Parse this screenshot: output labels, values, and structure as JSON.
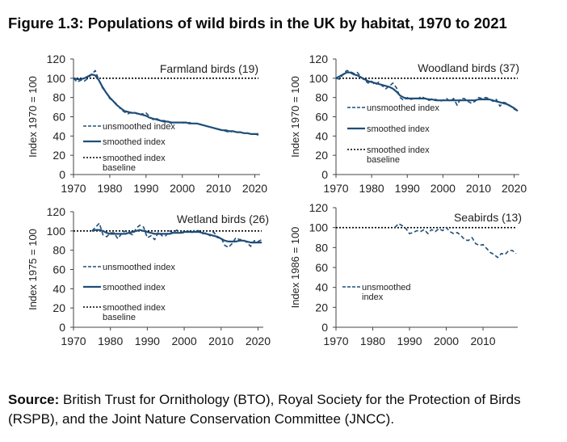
{
  "figure": {
    "title": "Figure 1.3: Populations of wild birds in the UK by habitat, 1970 to 2021",
    "source_label": "Source:",
    "source_text": "British Trust for Ornithology (BTO), Royal Society for the Protection of Birds (RSPB), and the Joint Nature Conservation Committee (JNCC)."
  },
  "colors": {
    "series": "#1f4e79",
    "baseline": "#000000",
    "axis": "#444444"
  },
  "chart_data": [
    {
      "type": "line",
      "title": "Farmland birds (19)",
      "xlabel": "",
      "ylabel": "Index 1970 = 100",
      "xlim": [
        1970,
        2021
      ],
      "ylim": [
        0,
        120
      ],
      "xticks": [
        1970,
        1980,
        1990,
        2000,
        2010,
        2020
      ],
      "yticks": [
        0,
        20,
        40,
        60,
        80,
        100,
        120
      ],
      "legend": [
        "unsmoothed index",
        "smoothed index",
        "smoothed index baseline"
      ],
      "legend_position": "bottom-left",
      "baseline": 100,
      "series": [
        {
          "name": "unsmoothed index",
          "style": "dashed",
          "x": [
            1970,
            1971,
            1972,
            1973,
            1974,
            1975,
            1976,
            1977,
            1978,
            1979,
            1980,
            1981,
            1982,
            1983,
            1984,
            1985,
            1986,
            1987,
            1988,
            1989,
            1990,
            1991,
            1992,
            1993,
            1994,
            1995,
            1996,
            1997,
            1998,
            1999,
            2000,
            2001,
            2002,
            2003,
            2004,
            2005,
            2006,
            2007,
            2008,
            2009,
            2010,
            2011,
            2012,
            2013,
            2014,
            2015,
            2016,
            2017,
            2018,
            2019,
            2020,
            2021
          ],
          "y": [
            100,
            96,
            98,
            97,
            100,
            104,
            108,
            98,
            90,
            85,
            79,
            76,
            73,
            68,
            65,
            63,
            65,
            64,
            62,
            63,
            64,
            60,
            57,
            58,
            56,
            56,
            55,
            53,
            54,
            54,
            54,
            53,
            54,
            53,
            53,
            52,
            51,
            50,
            49,
            48,
            47,
            46,
            45,
            44,
            45,
            44,
            44,
            43,
            43,
            42,
            42,
            41
          ]
        },
        {
          "name": "smoothed index",
          "style": "solid",
          "x": [
            1970,
            1971,
            1972,
            1973,
            1974,
            1975,
            1976,
            1977,
            1978,
            1979,
            1980,
            1981,
            1982,
            1983,
            1984,
            1985,
            1986,
            1987,
            1988,
            1989,
            1990,
            1991,
            1992,
            1993,
            1994,
            1995,
            1996,
            1997,
            1998,
            1999,
            2000,
            2001,
            2002,
            2003,
            2004,
            2005,
            2006,
            2007,
            2008,
            2009,
            2010,
            2011,
            2012,
            2013,
            2014,
            2015,
            2016,
            2017,
            2018,
            2019,
            2020,
            2021
          ],
          "y": [
            100,
            99,
            99,
            100,
            102,
            104,
            103,
            98,
            91,
            85,
            80,
            76,
            72,
            69,
            66,
            65,
            64,
            64,
            63,
            62,
            61,
            59,
            58,
            57,
            56,
            55,
            55,
            54,
            54,
            54,
            54,
            54,
            53,
            53,
            53,
            52,
            51,
            50,
            49,
            48,
            47,
            46,
            46,
            45,
            45,
            44,
            44,
            43,
            43,
            42,
            42,
            42
          ]
        }
      ]
    },
    {
      "type": "line",
      "title": "Woodland birds (37)",
      "xlabel": "",
      "ylabel": "Index 1970 = 100",
      "xlim": [
        1970,
        2021
      ],
      "ylim": [
        0,
        120
      ],
      "xticks": [
        1970,
        1980,
        1990,
        2000,
        2010,
        2020
      ],
      "yticks": [
        0,
        20,
        40,
        60,
        80,
        100,
        120
      ],
      "legend": [
        "unsmoothed index",
        "smoothed index",
        "smoothed index baseline"
      ],
      "legend_position": "middle-left",
      "baseline": 100,
      "series": [
        {
          "name": "unsmoothed index",
          "style": "dashed",
          "x": [
            1970,
            1971,
            1972,
            1973,
            1974,
            1975,
            1976,
            1977,
            1978,
            1979,
            1980,
            1981,
            1982,
            1983,
            1984,
            1985,
            1986,
            1987,
            1988,
            1989,
            1990,
            1991,
            1992,
            1993,
            1994,
            1995,
            1996,
            1997,
            1998,
            1999,
            2000,
            2001,
            2002,
            2003,
            2004,
            2005,
            2006,
            2007,
            2008,
            2009,
            2010,
            2011,
            2012,
            2013,
            2014,
            2015,
            2016,
            2017,
            2018,
            2019,
            2020,
            2021
          ],
          "y": [
            100,
            99,
            104,
            108,
            107,
            105,
            106,
            101,
            98,
            95,
            97,
            93,
            96,
            92,
            89,
            92,
            95,
            90,
            80,
            77,
            80,
            78,
            79,
            79,
            81,
            79,
            77,
            78,
            78,
            76,
            77,
            79,
            76,
            79,
            72,
            79,
            79,
            76,
            74,
            76,
            80,
            79,
            80,
            79,
            76,
            78,
            71,
            75,
            74,
            71,
            68,
            66
          ]
        },
        {
          "name": "smoothed index",
          "style": "solid",
          "x": [
            1970,
            1971,
            1972,
            1973,
            1974,
            1975,
            1976,
            1977,
            1978,
            1979,
            1980,
            1981,
            1982,
            1983,
            1984,
            1985,
            1986,
            1987,
            1988,
            1989,
            1990,
            1991,
            1992,
            1993,
            1994,
            1995,
            1996,
            1997,
            1998,
            1999,
            2000,
            2001,
            2002,
            2003,
            2004,
            2005,
            2006,
            2007,
            2008,
            2009,
            2010,
            2011,
            2012,
            2013,
            2014,
            2015,
            2016,
            2017,
            2018,
            2019,
            2020,
            2021
          ],
          "y": [
            100,
            102,
            104,
            106,
            106,
            104,
            103,
            101,
            99,
            97,
            96,
            95,
            94,
            93,
            92,
            91,
            89,
            86,
            82,
            80,
            79,
            79,
            79,
            79,
            79,
            79,
            78,
            78,
            77,
            77,
            77,
            77,
            77,
            77,
            77,
            77,
            77,
            77,
            77,
            77,
            78,
            78,
            78,
            78,
            77,
            76,
            75,
            74,
            73,
            71,
            69,
            66
          ]
        }
      ]
    },
    {
      "type": "line",
      "title": "Wetland birds (26)",
      "xlabel": "",
      "ylabel": "Index 1975 = 100",
      "xlim": [
        1970,
        2021
      ],
      "ylim": [
        0,
        120
      ],
      "xticks": [
        1970,
        1980,
        1990,
        2000,
        2010,
        2020
      ],
      "yticks": [
        0,
        20,
        40,
        60,
        80,
        100,
        120
      ],
      "legend": [
        "unsmoothed index",
        "smoothed index",
        "smoothed index baseline"
      ],
      "legend_position": "bottom-left",
      "baseline": 100,
      "series": [
        {
          "name": "unsmoothed index",
          "style": "dashed",
          "x": [
            1975,
            1976,
            1977,
            1978,
            1979,
            1980,
            1981,
            1982,
            1983,
            1984,
            1985,
            1986,
            1987,
            1988,
            1989,
            1990,
            1991,
            1992,
            1993,
            1994,
            1995,
            1996,
            1997,
            1998,
            1999,
            2000,
            2001,
            2002,
            2003,
            2004,
            2005,
            2006,
            2007,
            2008,
            2009,
            2010,
            2011,
            2012,
            2013,
            2014,
            2015,
            2016,
            2017,
            2018,
            2019,
            2020,
            2021
          ],
          "y": [
            100,
            104,
            108,
            96,
            94,
            98,
            98,
            92,
            97,
            100,
            98,
            96,
            103,
            106,
            104,
            93,
            95,
            91,
            99,
            95,
            95,
            100,
            98,
            101,
            98,
            98,
            100,
            98,
            101,
            100,
            97,
            98,
            95,
            99,
            93,
            93,
            85,
            83,
            87,
            93,
            91,
            91,
            88,
            84,
            90,
            89,
            91
          ]
        },
        {
          "name": "smoothed index",
          "style": "solid",
          "x": [
            1975,
            1976,
            1977,
            1978,
            1979,
            1980,
            1981,
            1982,
            1983,
            1984,
            1985,
            1986,
            1987,
            1988,
            1989,
            1990,
            1991,
            1992,
            1993,
            1994,
            1995,
            1996,
            1997,
            1998,
            1999,
            2000,
            2001,
            2002,
            2003,
            2004,
            2005,
            2006,
            2007,
            2008,
            2009,
            2010,
            2011,
            2012,
            2013,
            2014,
            2015,
            2016,
            2017,
            2018,
            2019,
            2020,
            2021
          ],
          "y": [
            100,
            101,
            101,
            100,
            98,
            97,
            97,
            97,
            97,
            97,
            98,
            99,
            100,
            101,
            100,
            99,
            98,
            97,
            97,
            97,
            97,
            97,
            98,
            98,
            98,
            99,
            99,
            99,
            99,
            99,
            98,
            97,
            96,
            95,
            94,
            92,
            90,
            89,
            89,
            89,
            90,
            90,
            89,
            88,
            88,
            88,
            88
          ]
        }
      ]
    },
    {
      "type": "line",
      "title": "Seabirds (13)",
      "xlabel": "",
      "ylabel": "Index 1986 = 100",
      "xlim": [
        1970,
        2021
      ],
      "ylim": [
        0,
        120
      ],
      "xticks": [
        1970,
        1980,
        1990,
        2000,
        2010
      ],
      "yticks": [
        0,
        20,
        40,
        60,
        80,
        100,
        120
      ],
      "legend": [
        "unsmoothed index"
      ],
      "legend_position": "bottom-left",
      "baseline": 100,
      "series": [
        {
          "name": "unsmoothed index",
          "style": "dashed",
          "x": [
            1986,
            1987,
            1988,
            1989,
            1990,
            1991,
            1992,
            1993,
            1994,
            1995,
            1996,
            1997,
            1998,
            1999,
            2000,
            2001,
            2002,
            2003,
            2004,
            2005,
            2006,
            2007,
            2008,
            2009,
            2010,
            2011,
            2012,
            2013,
            2014,
            2015,
            2016,
            2017,
            2018,
            2019
          ],
          "y": [
            100,
            104,
            102,
            99,
            94,
            95,
            97,
            96,
            98,
            94,
            98,
            96,
            99,
            97,
            100,
            96,
            94,
            95,
            92,
            88,
            87,
            90,
            84,
            82,
            83,
            79,
            75,
            73,
            70,
            74,
            73,
            77,
            77,
            74
          ]
        }
      ]
    }
  ]
}
